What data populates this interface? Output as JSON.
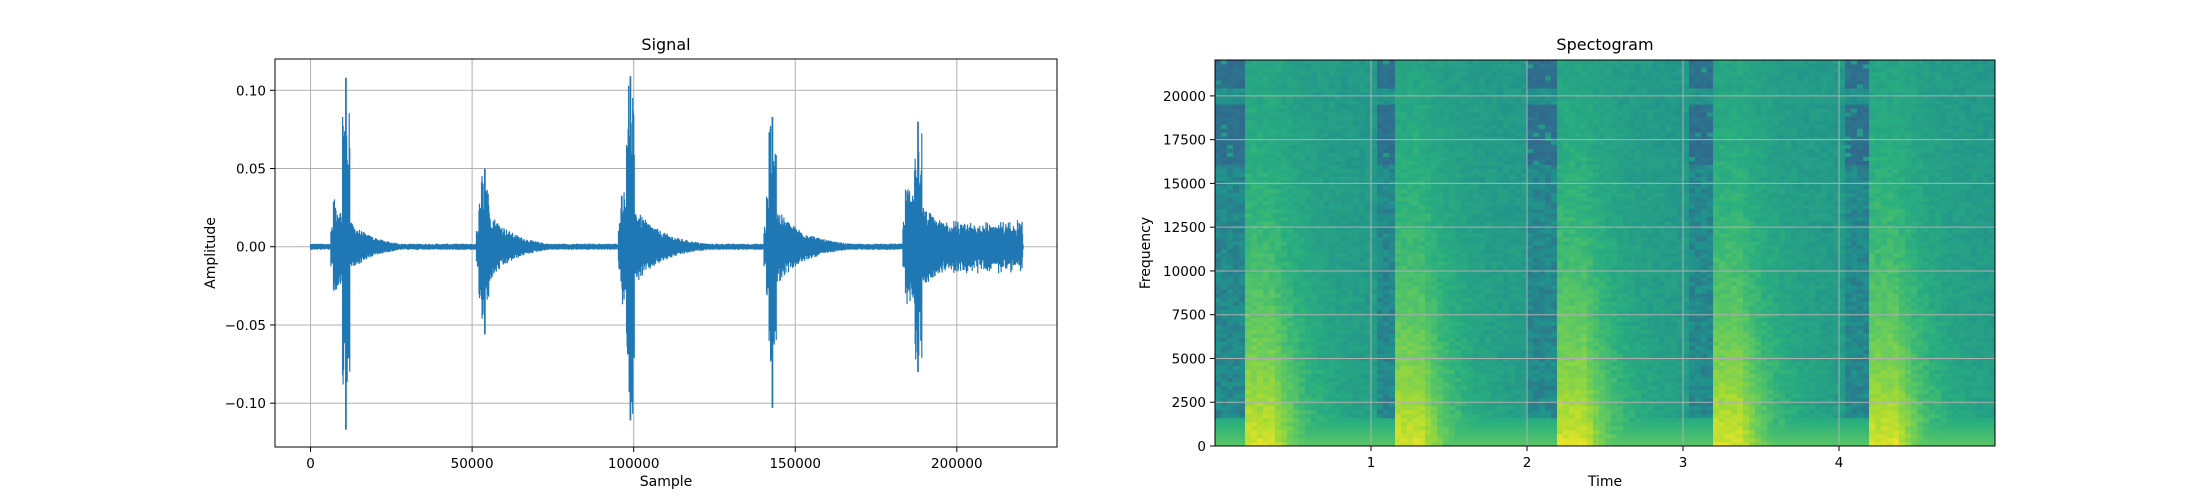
{
  "chart_data": [
    {
      "type": "line",
      "title": "Signal",
      "xlabel": "Sample",
      "ylabel": "Amplitude",
      "xlim": [
        -11000,
        231000
      ],
      "ylim": [
        -0.128,
        0.12
      ],
      "xticks": [
        0,
        50000,
        100000,
        150000,
        200000
      ],
      "xtick_labels": [
        "0",
        "50000",
        "100000",
        "150000",
        "200000"
      ],
      "yticks": [
        -0.1,
        -0.05,
        0.0,
        0.05,
        0.1
      ],
      "ytick_labels": [
        "−0.10",
        "−0.05",
        "0.00",
        "0.05",
        "0.10"
      ],
      "grid": true,
      "color": "#1f77b4",
      "series": [
        {
          "name": "signal",
          "n_samples": 220500,
          "noise_floor": 0.002,
          "events": [
            {
              "onset": 7000,
              "peak": 11000,
              "pos": 0.108,
              "neg": -0.117,
              "width": 22000,
              "body": 0.032
            },
            {
              "onset": 52000,
              "peak": 54000,
              "pos": 0.05,
              "neg": -0.056,
              "width": 22000,
              "body": 0.035
            },
            {
              "onset": 96000,
              "peak": 99000,
              "pos": 0.109,
              "neg": -0.111,
              "width": 26000,
              "body": 0.04
            },
            {
              "onset": 141000,
              "peak": 143000,
              "pos": 0.083,
              "neg": -0.103,
              "width": 26000,
              "body": 0.035
            },
            {
              "onset": 184000,
              "peak": 188000,
              "pos": 0.08,
              "neg": -0.08,
              "width": 36000,
              "body": 0.04
            }
          ]
        }
      ]
    },
    {
      "type": "heatmap",
      "title": "Spectogram",
      "xlabel": "Time",
      "ylabel": "Frequency",
      "xlim": [
        0,
        5.0
      ],
      "ylim": [
        0,
        22050
      ],
      "xticks": [
        1,
        2,
        3,
        4
      ],
      "xtick_labels": [
        "1",
        "2",
        "3",
        "4"
      ],
      "yticks": [
        0,
        2500,
        5000,
        7500,
        10000,
        12500,
        15000,
        17500,
        20000
      ],
      "ytick_labels": [
        "0",
        "2500",
        "5000",
        "7500",
        "10000",
        "12500",
        "15000",
        "17500",
        "20000"
      ],
      "grid": true,
      "colormap": "viridis",
      "onsets": [
        0.25,
        1.2,
        2.25,
        3.25,
        4.25
      ],
      "high_band_cutoff": 16000
    }
  ]
}
